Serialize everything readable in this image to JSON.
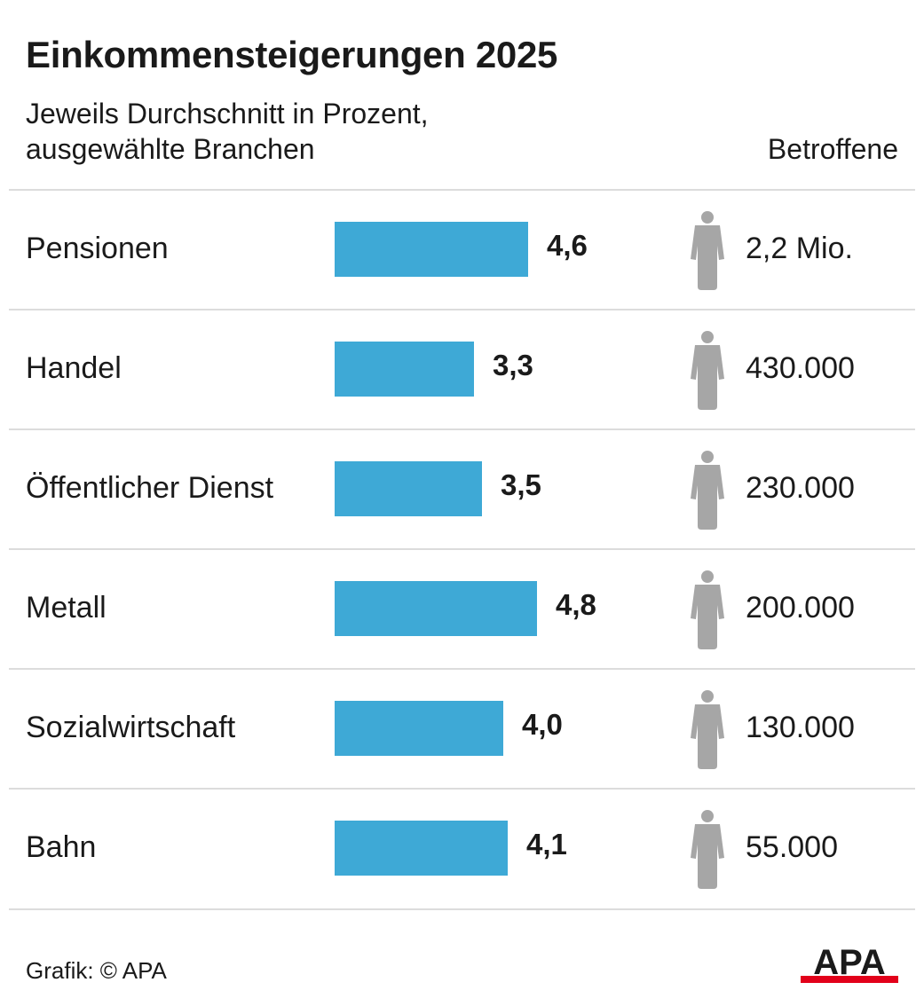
{
  "header": {
    "title": "Einkommensteigerungen 2025",
    "subtitle_line1": "Jeweils Durchschnitt in Prozent,",
    "subtitle_line2": "ausgewählte Branchen",
    "column_header": "Betroffene"
  },
  "colors": {
    "bar": "#3ea9d6",
    "person_icon": "#a6a6a6",
    "divider": "#dcdcdc",
    "logo_text": "#1a1a1a",
    "logo_accent": "#e2001a"
  },
  "chart_data": {
    "type": "bar",
    "orientation": "horizontal",
    "title": "Einkommensteigerungen 2025",
    "subtitle": "Jeweils Durchschnitt in Prozent, ausgewählte Branchen",
    "categories": [
      "Pensionen",
      "Handel",
      "Öffentlicher Dienst",
      "Metall",
      "Sozialwirtschaft",
      "Bahn"
    ],
    "values": [
      4.6,
      3.3,
      3.5,
      4.8,
      4.0,
      4.1
    ],
    "value_labels": [
      "4,6",
      "3,3",
      "3,5",
      "4,8",
      "4,0",
      "4,1"
    ],
    "affected_header": "Betroffene",
    "affected": [
      "2,2 Mio.",
      "430.000",
      "230.000",
      "200.000",
      "130.000",
      "55.000"
    ],
    "xlim": [
      0,
      4.8
    ],
    "grid": false,
    "legend": "none"
  },
  "footer": {
    "source": "Grafik: © APA",
    "logo_text": "APA",
    "logo_icon": "apa-logo-icon"
  },
  "icons": {
    "person": "person-icon"
  }
}
